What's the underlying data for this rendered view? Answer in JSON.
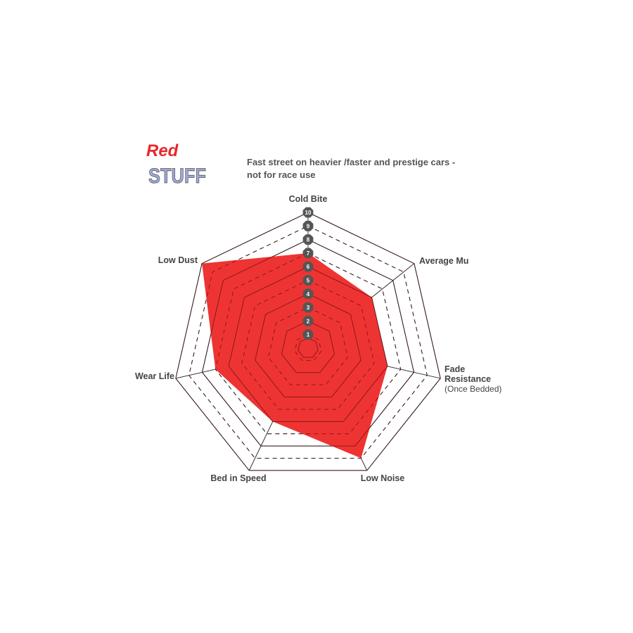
{
  "logo": {
    "text_top": "Red",
    "text_bottom": "STUFF",
    "colors": {
      "top": "#e8282b",
      "bottom": "#9fa8d8"
    }
  },
  "chart_data": {
    "type": "radar",
    "title": "Fast street on heavier /faster and prestige cars - not for race use",
    "title_lines": [
      "Fast street on heavier /faster and prestige cars -",
      "not for race use"
    ],
    "axes": [
      "Cold Bite",
      "Average Mu",
      "Fade Resistance",
      "Low Noise",
      "Bed in Speed",
      "Wear Life",
      "Low Dust"
    ],
    "axis_sublabels": {
      "Fade Resistance": "(Once Bedded)"
    },
    "values": [
      7,
      6,
      6,
      9,
      6,
      7,
      10
    ],
    "range": [
      0,
      10
    ],
    "ticks": [
      "1",
      "2",
      "3",
      "4",
      "5",
      "6",
      "7",
      "8",
      "9",
      "10"
    ],
    "fill_color": "#ee3433",
    "grid": true
  }
}
